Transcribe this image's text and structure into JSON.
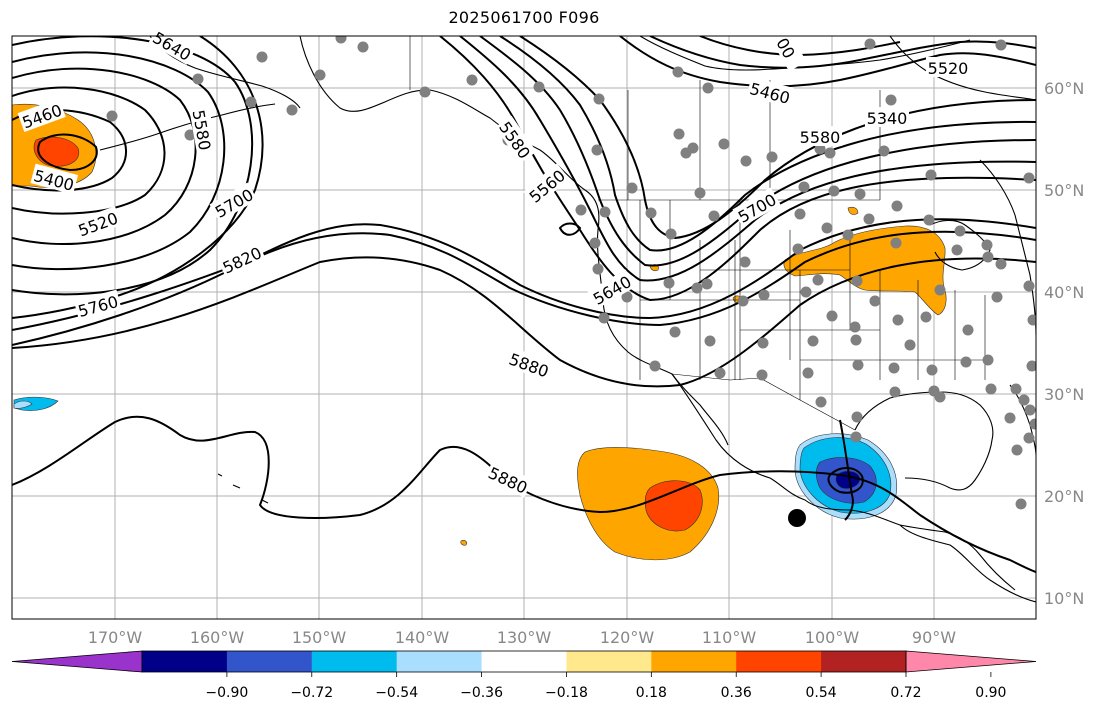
{
  "title": "2025061700 F096",
  "map": {
    "lon_ticks": [
      "170°W",
      "160°W",
      "150°W",
      "140°W",
      "130°W",
      "120°W",
      "110°W",
      "100°W",
      "90°W"
    ],
    "lat_ticks": [
      "10°N",
      "20°N",
      "30°N",
      "40°N",
      "50°N",
      "60°N"
    ],
    "contour_labels": [
      "5640",
      "5460",
      "5580",
      "5400",
      "5520",
      "5700",
      "5820",
      "5760",
      "5580",
      "5560",
      "5640",
      "5700",
      "5880",
      "5880",
      "5460",
      "5580",
      "5340",
      "5520",
      "00"
    ]
  },
  "colorbar": {
    "tick_labels": [
      "−0.90",
      "−0.72",
      "−0.54",
      "−0.36",
      "−0.18",
      "0.18",
      "0.36",
      "0.54",
      "0.72",
      "0.90"
    ],
    "colors": [
      "#9933cc",
      "#000088",
      "#3355cc",
      "#00bbee",
      "#aadeff",
      "#ffffff",
      "#ffe98c",
      "#ffa500",
      "#ff4400",
      "#b22222",
      "#ff88aa"
    ]
  }
}
